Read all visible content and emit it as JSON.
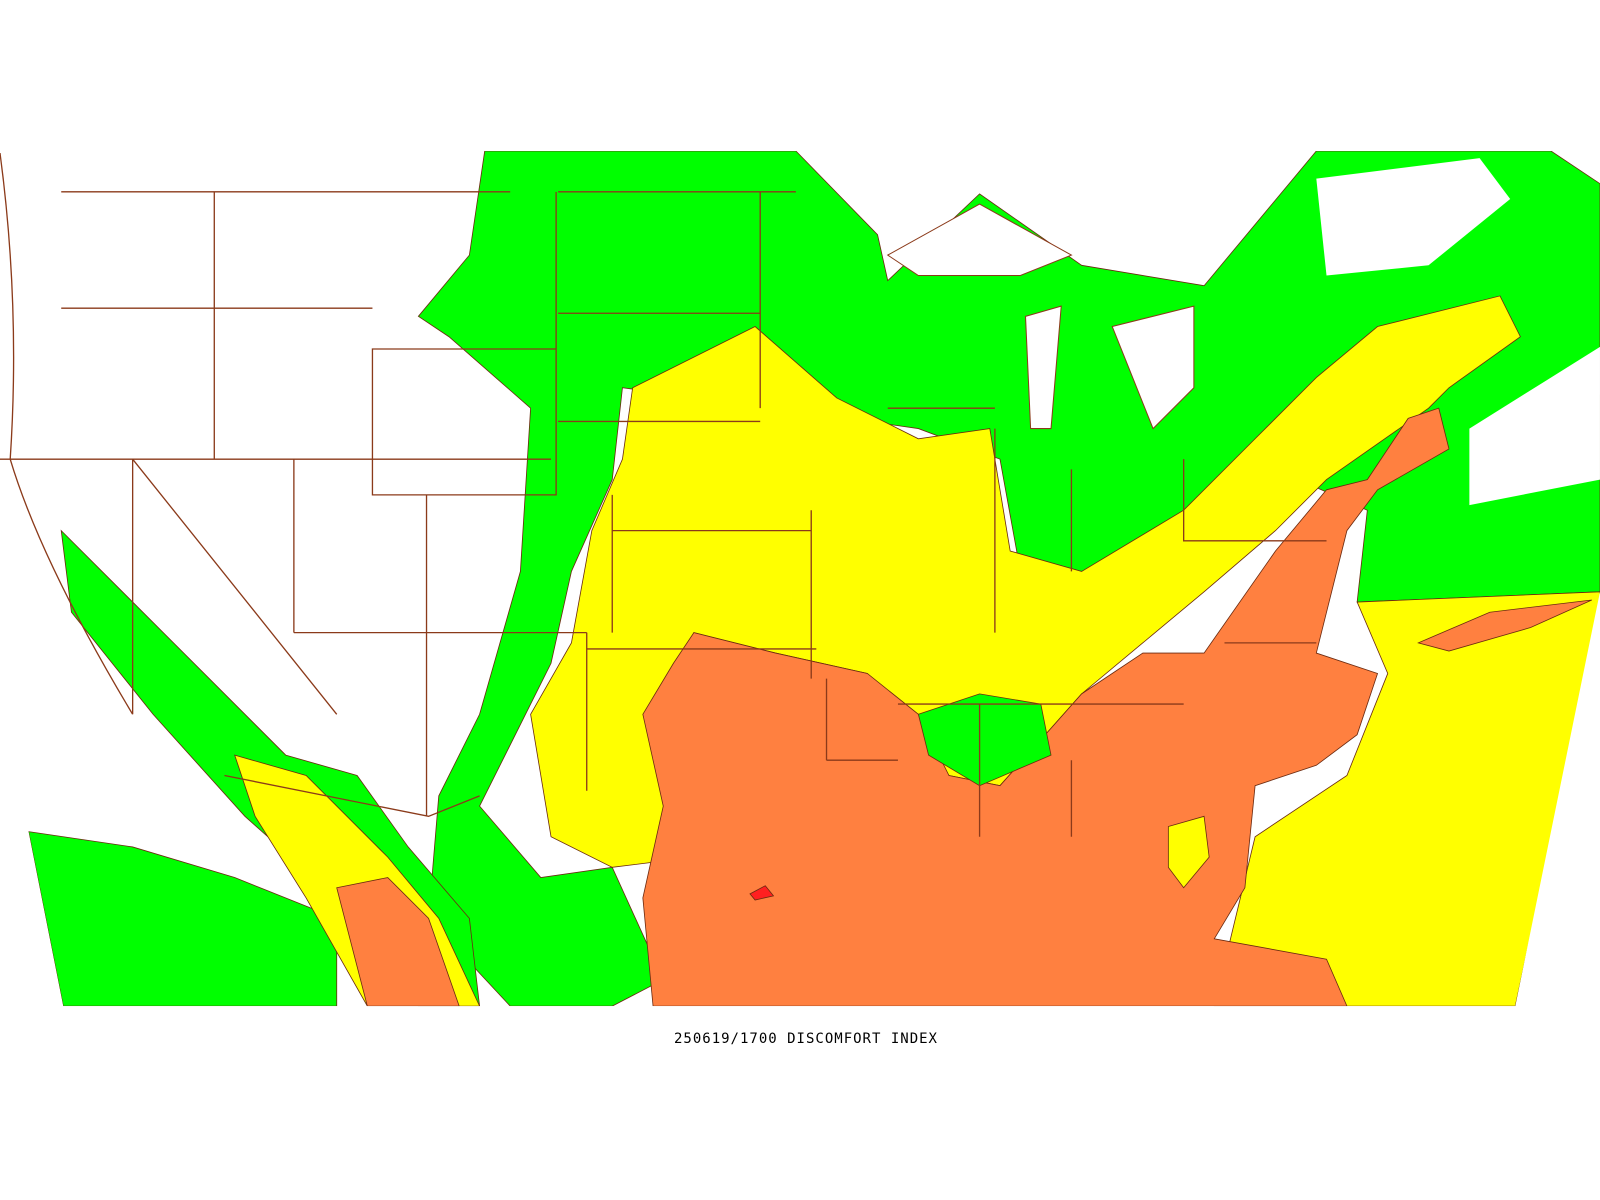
{
  "caption": "250619/1700 DISCOMFORT INDEX"
}
